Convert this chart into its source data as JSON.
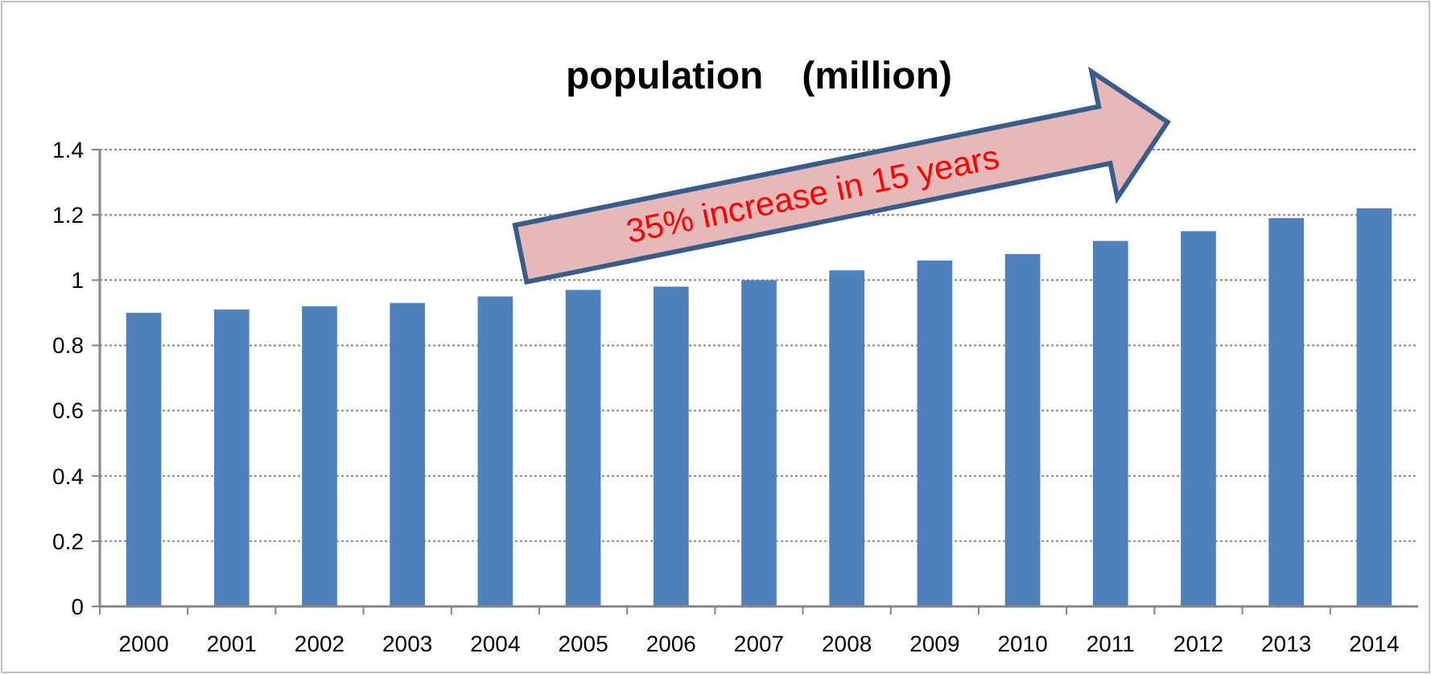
{
  "chart_data": {
    "type": "bar",
    "title": "population　(million)",
    "categories": [
      "2000",
      "2001",
      "2002",
      "2003",
      "2004",
      "2005",
      "2006",
      "2007",
      "2008",
      "2009",
      "2010",
      "2011",
      "2012",
      "2013",
      "2014"
    ],
    "values": [
      0.9,
      0.91,
      0.92,
      0.93,
      0.95,
      0.97,
      0.98,
      1.0,
      1.03,
      1.06,
      1.08,
      1.12,
      1.15,
      1.19,
      1.22
    ],
    "color": "#4f81bd",
    "ylim": [
      0,
      1.4
    ],
    "yticks": [
      0,
      0.2,
      0.4,
      0.6,
      0.8,
      1,
      1.2,
      1.4
    ],
    "grid": "y",
    "annotations": [
      "35% increase in 15 years"
    ]
  }
}
